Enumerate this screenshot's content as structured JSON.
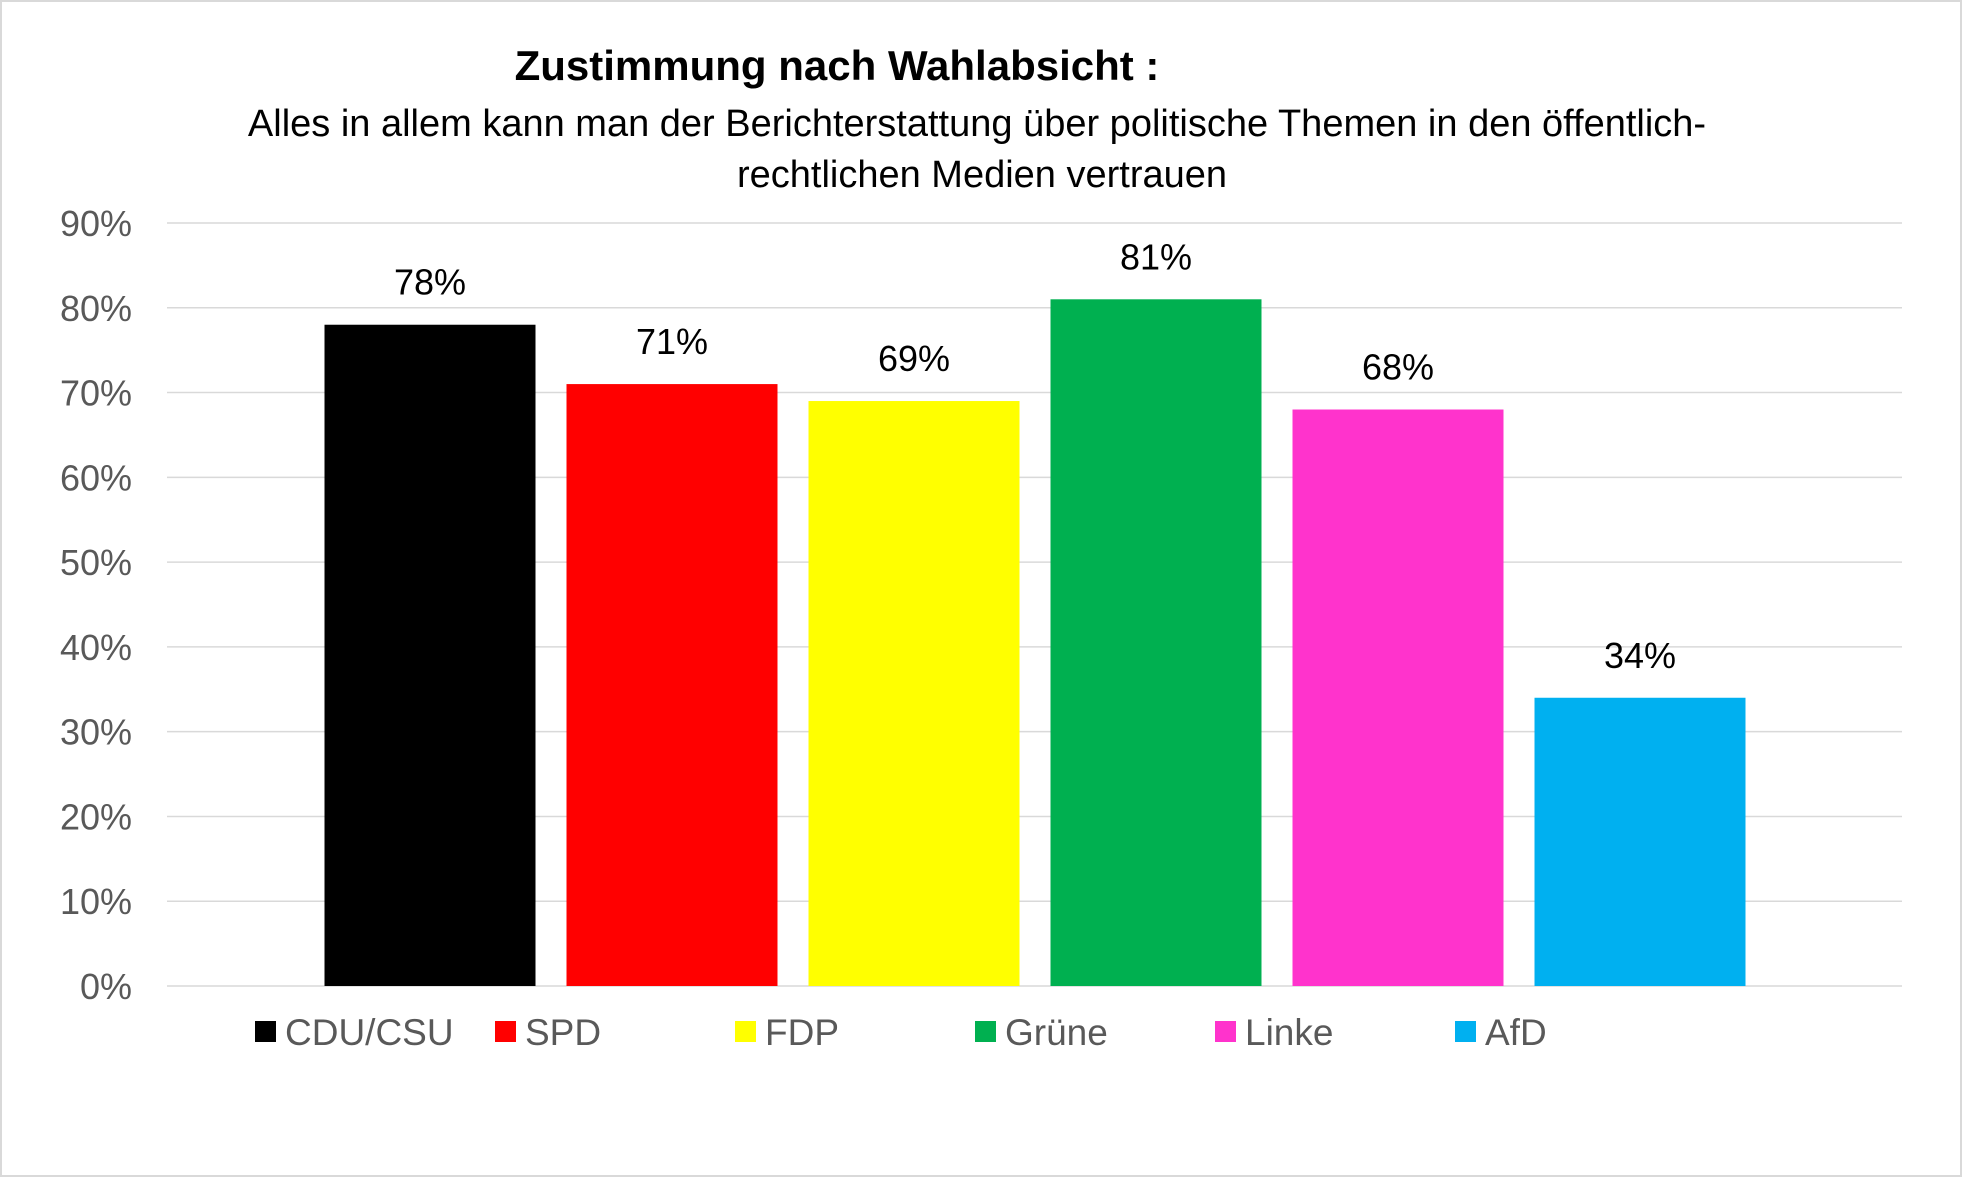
{
  "chart_data": {
    "type": "bar",
    "title": "Zustimmung nach Wahlabsicht :",
    "subtitle_lines": [
      "Alles in allem kann man der Berichterstattung über politische Themen in den öffentlich-",
      "rechtlichen Medien vertrauen"
    ],
    "categories": [
      "CDU/CSU",
      "SPD",
      "FDP",
      "Grüne",
      "Linke",
      "AfD"
    ],
    "values": [
      78,
      71,
      69,
      81,
      68,
      34
    ],
    "value_labels": [
      "78%",
      "71%",
      "69%",
      "81%",
      "68%",
      "34%"
    ],
    "colors": [
      "#000000",
      "#ff0000",
      "#ffff00",
      "#00b050",
      "#ff33cc",
      "#00b0f0"
    ],
    "ylim": [
      0,
      90
    ],
    "yticks": [
      "0%",
      "10%",
      "20%",
      "30%",
      "40%",
      "50%",
      "60%",
      "70%",
      "80%",
      "90%"
    ],
    "grid": true,
    "legend_position": "bottom",
    "xlabel": "",
    "ylabel": ""
  }
}
